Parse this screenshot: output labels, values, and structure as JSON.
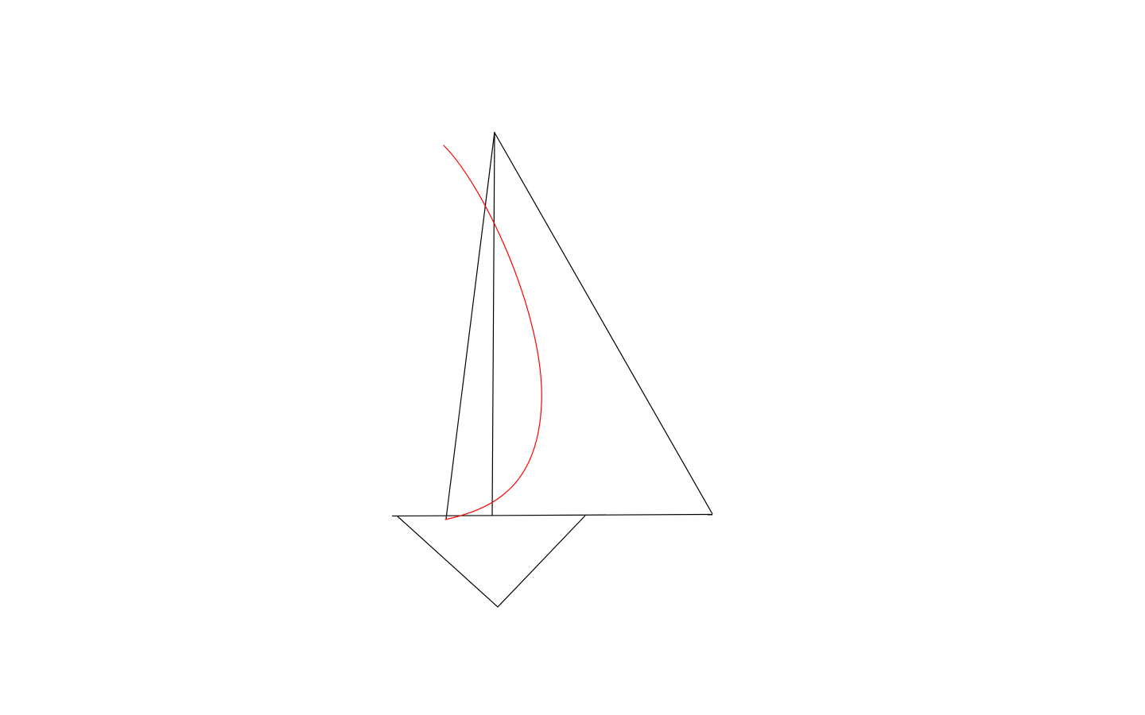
{
  "drawing": {
    "colors": {
      "background": "#ffffff",
      "outline": "#000000",
      "accent_curve": "#ff0000"
    }
  }
}
